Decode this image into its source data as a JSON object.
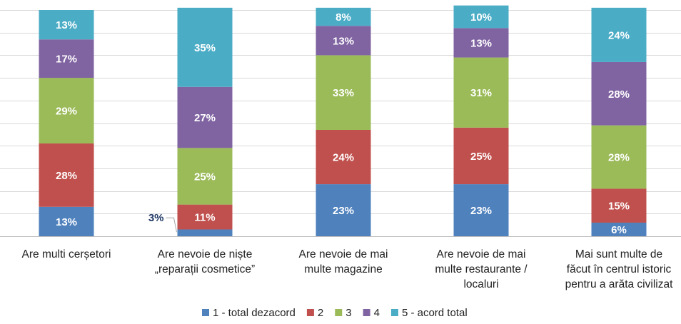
{
  "chart_data": {
    "type": "bar",
    "stacked": true,
    "percent": true,
    "title": "",
    "xlabel": "",
    "ylabel": "",
    "ylim": [
      0,
      100
    ],
    "grid": true,
    "legend_position": "bottom",
    "categories": [
      [
        "Are multi cerșetori"
      ],
      [
        "Are nevoie de niște",
        "„reparații cosmetice”"
      ],
      [
        "Are nevoie de mai",
        "multe magazine"
      ],
      [
        "Are nevoie de mai",
        "multe restaurante /",
        "localuri"
      ],
      [
        "Mai sunt multe de",
        "făcut în centrul istoric",
        "pentru a arăta civilizat"
      ]
    ],
    "series": [
      {
        "name": "1 - total dezacord",
        "color": "#4f81bd",
        "values": [
          13,
          3,
          23,
          23,
          6
        ]
      },
      {
        "name": "2",
        "color": "#c0504d",
        "values": [
          28,
          11,
          24,
          25,
          15
        ]
      },
      {
        "name": "3",
        "color": "#9bbb59",
        "values": [
          29,
          25,
          33,
          31,
          28
        ]
      },
      {
        "name": "4",
        "color": "#8064a2",
        "values": [
          17,
          27,
          13,
          13,
          28
        ]
      },
      {
        "name": "5 - acord total",
        "color": "#4bacc6",
        "values": [
          13,
          35,
          8,
          10,
          24
        ]
      }
    ],
    "value_suffix": "%",
    "callouts": [
      {
        "category_index": 1,
        "series_index": 0,
        "label": "3%"
      }
    ]
  }
}
